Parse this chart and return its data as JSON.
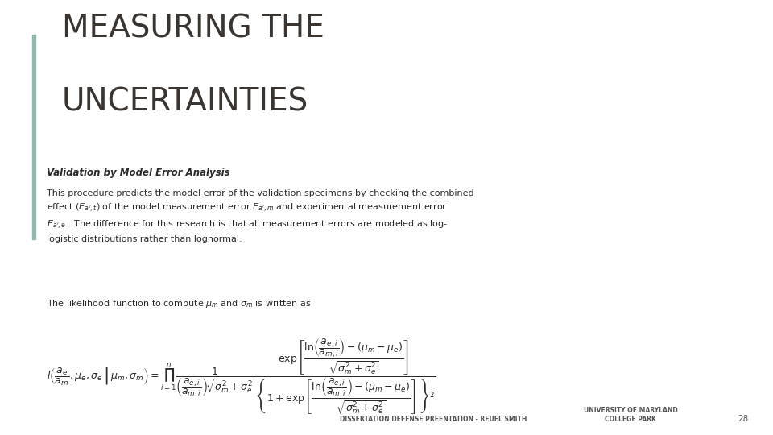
{
  "title_line1": "MEASURING THE",
  "title_line2": "UNCERTAINTIES",
  "title_color": "#3a3530",
  "title_fontsize": 28,
  "title_fontweight": "normal",
  "accent_bar_color": "#90b8b0",
  "background_color": "#ffffff",
  "subtitle": "Validation by Model Error Analysis",
  "subtitle_fontsize": 8.5,
  "body_fontsize": 8,
  "likelihood_intro_fontsize": 8,
  "formula_fontsize": 9,
  "footer_left": "DISSERTATION DEFENSE PREENTATION - REUEL SMITH",
  "footer_right": "UNIVERSITY OF MARYLAND\nCOLLEGE PARK",
  "footer_page": "28",
  "footer_fontsize": 5.5,
  "footer_color": "#555555",
  "text_color": "#2a2a2a"
}
